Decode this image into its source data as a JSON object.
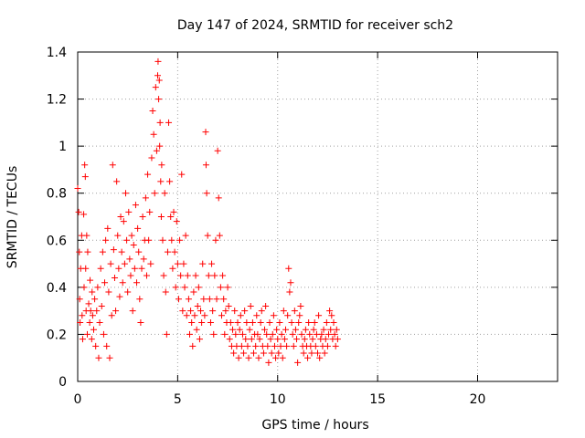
{
  "chart_data": {
    "type": "scatter",
    "title": "Day 147 of 2024, SRMTID for receiver sch2",
    "xlabel": "GPS time / hours",
    "ylabel": "SRMTID / TECUs",
    "xlim": [
      0,
      24
    ],
    "ylim": [
      0,
      1.4
    ],
    "xticks": [
      0,
      5,
      10,
      15,
      20
    ],
    "xtick_labels": [
      "0",
      "5",
      "10",
      "15",
      "20"
    ],
    "yticks": [
      0,
      0.2,
      0.4,
      0.6,
      0.8,
      1.0,
      1.2,
      1.4
    ],
    "ytick_labels": [
      "0",
      "0.2",
      "0.4",
      "0.6",
      "0.8",
      "1",
      "1.2",
      "1.4"
    ],
    "grid": true,
    "marker": "+",
    "color": "#ff0000",
    "series": [
      {
        "name": "sch2",
        "points": [
          [
            0.0,
            0.82
          ],
          [
            0.05,
            0.72
          ],
          [
            0.08,
            0.55
          ],
          [
            0.1,
            0.35
          ],
          [
            0.12,
            0.25
          ],
          [
            0.15,
            0.48
          ],
          [
            0.2,
            0.62
          ],
          [
            0.22,
            0.28
          ],
          [
            0.25,
            0.18
          ],
          [
            0.3,
            0.71
          ],
          [
            0.32,
            0.4
          ],
          [
            0.35,
            0.92
          ],
          [
            0.38,
            0.87
          ],
          [
            0.4,
            0.48
          ],
          [
            0.42,
            0.3
          ],
          [
            0.45,
            0.62
          ],
          [
            0.48,
            0.2
          ],
          [
            0.5,
            0.55
          ],
          [
            0.55,
            0.33
          ],
          [
            0.6,
            0.25
          ],
          [
            0.62,
            0.43
          ],
          [
            0.65,
            0.3
          ],
          [
            0.7,
            0.18
          ],
          [
            0.72,
            0.38
          ],
          [
            0.75,
            0.28
          ],
          [
            0.8,
            0.22
          ],
          [
            0.85,
            0.35
          ],
          [
            0.9,
            0.15
          ],
          [
            0.95,
            0.3
          ],
          [
            1.0,
            0.4
          ],
          [
            1.05,
            0.1
          ],
          [
            1.1,
            0.25
          ],
          [
            1.15,
            0.48
          ],
          [
            1.2,
            0.32
          ],
          [
            1.25,
            0.55
          ],
          [
            1.3,
            0.2
          ],
          [
            1.35,
            0.42
          ],
          [
            1.4,
            0.6
          ],
          [
            1.45,
            0.15
          ],
          [
            1.5,
            0.65
          ],
          [
            1.55,
            0.38
          ],
          [
            1.6,
            0.1
          ],
          [
            1.65,
            0.5
          ],
          [
            1.7,
            0.28
          ],
          [
            1.75,
            0.92
          ],
          [
            1.8,
            0.56
          ],
          [
            1.85,
            0.44
          ],
          [
            1.9,
            0.3
          ],
          [
            1.95,
            0.85
          ],
          [
            2.0,
            0.62
          ],
          [
            2.05,
            0.48
          ],
          [
            2.1,
            0.36
          ],
          [
            2.15,
            0.7
          ],
          [
            2.2,
            0.55
          ],
          [
            2.25,
            0.42
          ],
          [
            2.3,
            0.68
          ],
          [
            2.35,
            0.5
          ],
          [
            2.4,
            0.8
          ],
          [
            2.45,
            0.6
          ],
          [
            2.5,
            0.38
          ],
          [
            2.55,
            0.72
          ],
          [
            2.6,
            0.52
          ],
          [
            2.65,
            0.45
          ],
          [
            2.7,
            0.62
          ],
          [
            2.75,
            0.3
          ],
          [
            2.8,
            0.58
          ],
          [
            2.85,
            0.48
          ],
          [
            2.9,
            0.75
          ],
          [
            2.95,
            0.42
          ],
          [
            3.0,
            0.65
          ],
          [
            3.05,
            0.55
          ],
          [
            3.1,
            0.35
          ],
          [
            3.15,
            0.25
          ],
          [
            3.2,
            0.48
          ],
          [
            3.25,
            0.7
          ],
          [
            3.3,
            0.52
          ],
          [
            3.35,
            0.6
          ],
          [
            3.4,
            0.78
          ],
          [
            3.45,
            0.45
          ],
          [
            3.5,
            0.88
          ],
          [
            3.55,
            0.6
          ],
          [
            3.6,
            0.72
          ],
          [
            3.65,
            0.5
          ],
          [
            3.7,
            0.95
          ],
          [
            3.75,
            1.15
          ],
          [
            3.8,
            1.05
          ],
          [
            3.85,
            0.8
          ],
          [
            3.9,
            1.25
          ],
          [
            3.95,
            0.98
          ],
          [
            4.0,
            1.3
          ],
          [
            4.02,
            1.36
          ],
          [
            4.05,
            1.2
          ],
          [
            4.08,
            1.28
          ],
          [
            4.1,
            1.0
          ],
          [
            4.12,
            1.1
          ],
          [
            4.15,
            0.85
          ],
          [
            4.18,
            0.7
          ],
          [
            4.2,
            0.92
          ],
          [
            4.25,
            0.6
          ],
          [
            4.3,
            0.45
          ],
          [
            4.35,
            0.8
          ],
          [
            4.4,
            0.38
          ],
          [
            4.45,
            0.2
          ],
          [
            4.5,
            0.55
          ],
          [
            4.55,
            1.1
          ],
          [
            4.6,
            0.85
          ],
          [
            4.65,
            0.7
          ],
          [
            4.7,
            0.6
          ],
          [
            4.75,
            0.48
          ],
          [
            4.8,
            0.72
          ],
          [
            4.85,
            0.55
          ],
          [
            4.9,
            0.4
          ],
          [
            4.95,
            0.68
          ],
          [
            5.0,
            0.5
          ],
          [
            5.05,
            0.35
          ],
          [
            5.1,
            0.6
          ],
          [
            5.15,
            0.45
          ],
          [
            5.2,
            0.88
          ],
          [
            5.25,
            0.3
          ],
          [
            5.3,
            0.5
          ],
          [
            5.35,
            0.4
          ],
          [
            5.4,
            0.62
          ],
          [
            5.45,
            0.28
          ],
          [
            5.5,
            0.45
          ],
          [
            5.55,
            0.35
          ],
          [
            5.6,
            0.2
          ],
          [
            5.65,
            0.3
          ],
          [
            5.7,
            0.25
          ],
          [
            5.75,
            0.15
          ],
          [
            5.8,
            0.38
          ],
          [
            5.85,
            0.28
          ],
          [
            5.9,
            0.45
          ],
          [
            5.95,
            0.22
          ],
          [
            6.0,
            0.32
          ],
          [
            6.05,
            0.4
          ],
          [
            6.1,
            0.18
          ],
          [
            6.15,
            0.3
          ],
          [
            6.2,
            0.25
          ],
          [
            6.25,
            0.5
          ],
          [
            6.3,
            0.35
          ],
          [
            6.35,
            0.28
          ],
          [
            6.4,
            1.06
          ],
          [
            6.42,
            0.92
          ],
          [
            6.45,
            0.8
          ],
          [
            6.5,
            0.62
          ],
          [
            6.55,
            0.45
          ],
          [
            6.6,
            0.35
          ],
          [
            6.65,
            0.25
          ],
          [
            6.7,
            0.5
          ],
          [
            6.75,
            0.3
          ],
          [
            6.8,
            0.2
          ],
          [
            6.85,
            0.45
          ],
          [
            6.9,
            0.6
          ],
          [
            6.95,
            0.35
          ],
          [
            7.0,
            0.98
          ],
          [
            7.05,
            0.78
          ],
          [
            7.1,
            0.62
          ],
          [
            7.15,
            0.4
          ],
          [
            7.2,
            0.28
          ],
          [
            7.25,
            0.45
          ],
          [
            7.3,
            0.35
          ],
          [
            7.35,
            0.2
          ],
          [
            7.4,
            0.3
          ],
          [
            7.45,
            0.25
          ],
          [
            7.5,
            0.4
          ],
          [
            7.55,
            0.32
          ],
          [
            7.6,
            0.18
          ],
          [
            7.65,
            0.25
          ],
          [
            7.7,
            0.15
          ],
          [
            7.75,
            0.22
          ],
          [
            7.8,
            0.12
          ],
          [
            7.85,
            0.3
          ],
          [
            7.9,
            0.2
          ],
          [
            7.95,
            0.15
          ],
          [
            8.0,
            0.25
          ],
          [
            8.05,
            0.1
          ],
          [
            8.1,
            0.22
          ],
          [
            8.15,
            0.28
          ],
          [
            8.2,
            0.15
          ],
          [
            8.25,
            0.2
          ],
          [
            8.3,
            0.12
          ],
          [
            8.35,
            0.3
          ],
          [
            8.4,
            0.18
          ],
          [
            8.45,
            0.25
          ],
          [
            8.5,
            0.15
          ],
          [
            8.55,
            0.1
          ],
          [
            8.6,
            0.22
          ],
          [
            8.65,
            0.32
          ],
          [
            8.7,
            0.18
          ],
          [
            8.75,
            0.25
          ],
          [
            8.8,
            0.12
          ],
          [
            8.85,
            0.2
          ],
          [
            8.9,
            0.15
          ],
          [
            8.95,
            0.28
          ],
          [
            9.0,
            0.2
          ],
          [
            9.05,
            0.1
          ],
          [
            9.1,
            0.18
          ],
          [
            9.15,
            0.25
          ],
          [
            9.2,
            0.3
          ],
          [
            9.25,
            0.15
          ],
          [
            9.3,
            0.12
          ],
          [
            9.35,
            0.22
          ],
          [
            9.4,
            0.32
          ],
          [
            9.45,
            0.2
          ],
          [
            9.5,
            0.15
          ],
          [
            9.55,
            0.08
          ],
          [
            9.6,
            0.25
          ],
          [
            9.65,
            0.18
          ],
          [
            9.7,
            0.12
          ],
          [
            9.75,
            0.2
          ],
          [
            9.8,
            0.28
          ],
          [
            9.85,
            0.15
          ],
          [
            9.9,
            0.1
          ],
          [
            9.95,
            0.22
          ],
          [
            10.0,
            0.18
          ],
          [
            10.05,
            0.12
          ],
          [
            10.1,
            0.25
          ],
          [
            10.15,
            0.15
          ],
          [
            10.2,
            0.2
          ],
          [
            10.25,
            0.1
          ],
          [
            10.3,
            0.3
          ],
          [
            10.35,
            0.18
          ],
          [
            10.4,
            0.22
          ],
          [
            10.45,
            0.15
          ],
          [
            10.5,
            0.28
          ],
          [
            10.55,
            0.48
          ],
          [
            10.6,
            0.38
          ],
          [
            10.65,
            0.42
          ],
          [
            10.7,
            0.25
          ],
          [
            10.75,
            0.2
          ],
          [
            10.8,
            0.15
          ],
          [
            10.85,
            0.3
          ],
          [
            10.9,
            0.22
          ],
          [
            10.95,
            0.18
          ],
          [
            11.0,
            0.08
          ],
          [
            11.05,
            0.25
          ],
          [
            11.1,
            0.28
          ],
          [
            11.15,
            0.32
          ],
          [
            11.2,
            0.2
          ],
          [
            11.25,
            0.15
          ],
          [
            11.3,
            0.12
          ],
          [
            11.35,
            0.18
          ],
          [
            11.4,
            0.22
          ],
          [
            11.45,
            0.15
          ],
          [
            11.5,
            0.1
          ],
          [
            11.55,
            0.25
          ],
          [
            11.6,
            0.2
          ],
          [
            11.65,
            0.15
          ],
          [
            11.7,
            0.12
          ],
          [
            11.75,
            0.18
          ],
          [
            11.8,
            0.22
          ],
          [
            11.85,
            0.25
          ],
          [
            11.9,
            0.15
          ],
          [
            11.95,
            0.2
          ],
          [
            12.0,
            0.12
          ],
          [
            12.05,
            0.28
          ],
          [
            12.1,
            0.1
          ],
          [
            12.15,
            0.18
          ],
          [
            12.2,
            0.2
          ],
          [
            12.25,
            0.15
          ],
          [
            12.3,
            0.22
          ],
          [
            12.35,
            0.12
          ],
          [
            12.4,
            0.18
          ],
          [
            12.45,
            0.25
          ],
          [
            12.5,
            0.15
          ],
          [
            12.55,
            0.2
          ],
          [
            12.6,
            0.3
          ],
          [
            12.65,
            0.22
          ],
          [
            12.7,
            0.28
          ],
          [
            12.75,
            0.18
          ],
          [
            12.8,
            0.25
          ],
          [
            12.85,
            0.2
          ],
          [
            12.9,
            0.15
          ],
          [
            12.95,
            0.22
          ],
          [
            13.0,
            0.18
          ]
        ]
      }
    ]
  }
}
